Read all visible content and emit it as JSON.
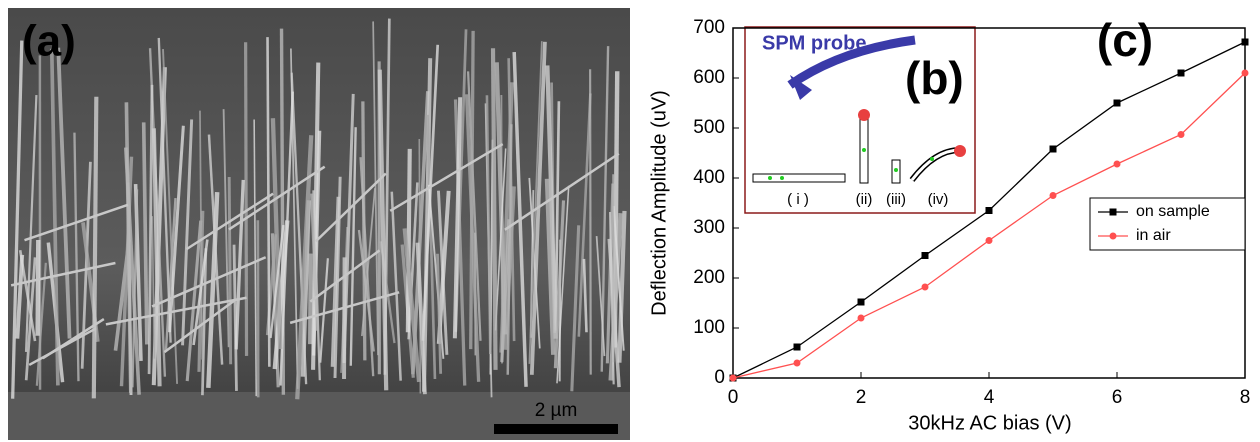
{
  "panels": {
    "sem_image": {
      "label": "(a)",
      "scale_bar": "2 µm"
    },
    "inset": {
      "title": "SPM probe",
      "label": "(b)",
      "sublabels": [
        "( i )",
        "(ii)",
        "(iii)",
        "(iv)"
      ]
    }
  },
  "chart_data": {
    "type": "line",
    "panel_label": "(c)",
    "x": [
      0,
      1,
      2,
      3,
      4,
      5,
      6,
      7,
      8
    ],
    "series": [
      {
        "name": "on sample",
        "color": "#000000",
        "marker": "square",
        "values": [
          0,
          62,
          152,
          245,
          335,
          458,
          550,
          610,
          672
        ]
      },
      {
        "name": "in air",
        "color": "#ff5050",
        "marker": "circle",
        "values": [
          0,
          30,
          120,
          182,
          275,
          365,
          428,
          487,
          610
        ]
      }
    ],
    "xlabel": "30kHz AC bias (V)",
    "ylabel": "Deflection Amplitude (uV)",
    "xlim": [
      0,
      8
    ],
    "ylim": [
      0,
      700
    ],
    "xticks": [
      0,
      2,
      4,
      6,
      8
    ],
    "yticks": [
      0,
      100,
      200,
      300,
      400,
      500,
      600,
      700
    ],
    "legend": "center right"
  }
}
